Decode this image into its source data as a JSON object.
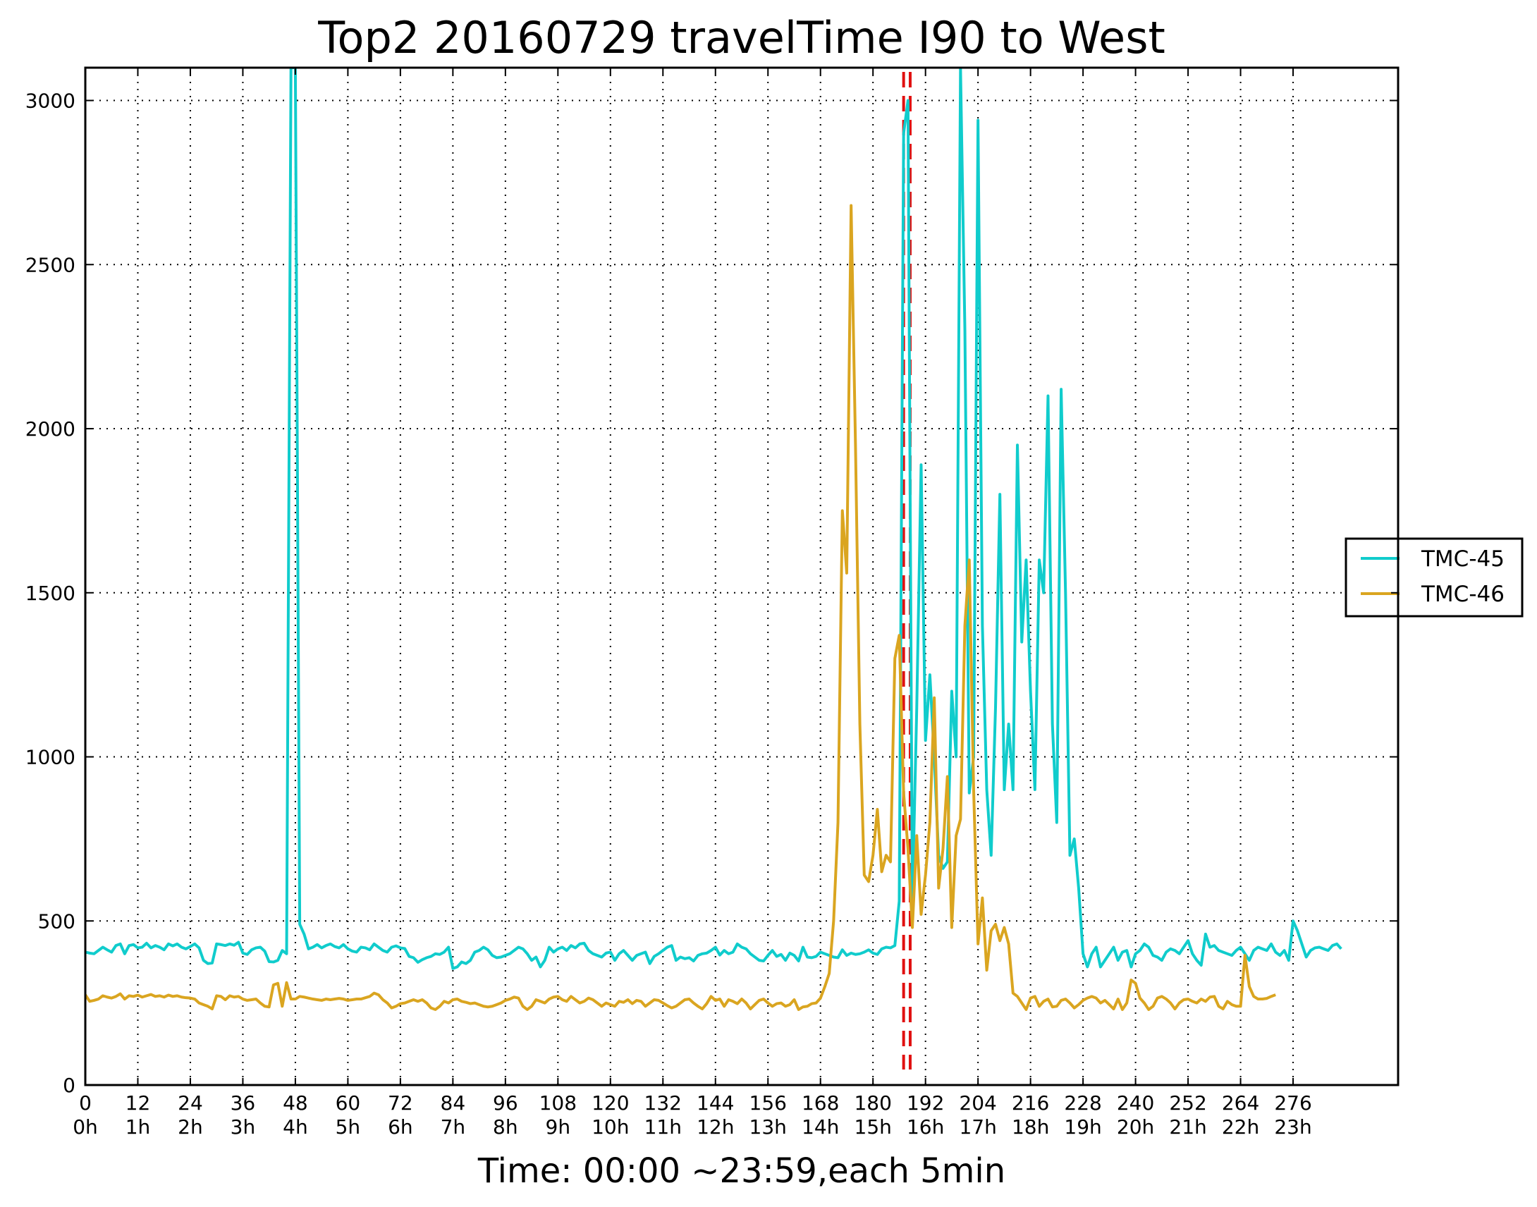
{
  "chart_data": {
    "type": "line",
    "title": "Top2 20160729 travelTime I90 to West",
    "xlabel": "Time: 00:00 ~23:59,each 5min",
    "ylabel": "",
    "xlim": [
      0,
      300
    ],
    "ylim": [
      0,
      3100
    ],
    "grid": true,
    "grid_style": "dotted",
    "legend_position": "right",
    "x_ticks": [
      {
        "value": 0,
        "label": "0",
        "hour_label": "0h"
      },
      {
        "value": 12,
        "label": "12",
        "hour_label": "1h"
      },
      {
        "value": 24,
        "label": "24",
        "hour_label": "2h"
      },
      {
        "value": 36,
        "label": "36",
        "hour_label": "3h"
      },
      {
        "value": 48,
        "label": "48",
        "hour_label": "4h"
      },
      {
        "value": 60,
        "label": "60",
        "hour_label": "5h"
      },
      {
        "value": 72,
        "label": "72",
        "hour_label": "6h"
      },
      {
        "value": 84,
        "label": "84",
        "hour_label": "7h"
      },
      {
        "value": 96,
        "label": "96",
        "hour_label": "8h"
      },
      {
        "value": 108,
        "label": "108",
        "hour_label": "9h"
      },
      {
        "value": 120,
        "label": "120",
        "hour_label": "10h"
      },
      {
        "value": 132,
        "label": "132",
        "hour_label": "11h"
      },
      {
        "value": 144,
        "label": "144",
        "hour_label": "12h"
      },
      {
        "value": 156,
        "label": "156",
        "hour_label": "13h"
      },
      {
        "value": 168,
        "label": "168",
        "hour_label": "14h"
      },
      {
        "value": 180,
        "label": "180",
        "hour_label": "15h"
      },
      {
        "value": 192,
        "label": "192",
        "hour_label": "16h"
      },
      {
        "value": 204,
        "label": "204",
        "hour_label": "17h"
      },
      {
        "value": 216,
        "label": "216",
        "hour_label": "18h"
      },
      {
        "value": 228,
        "label": "228",
        "hour_label": "19h"
      },
      {
        "value": 240,
        "label": "240",
        "hour_label": "20h"
      },
      {
        "value": 252,
        "label": "252",
        "hour_label": "21h"
      },
      {
        "value": 264,
        "label": "264",
        "hour_label": "22h"
      },
      {
        "value": 276,
        "label": "276",
        "hour_label": "23h"
      }
    ],
    "y_ticks": [
      {
        "value": 0,
        "label": "0"
      },
      {
        "value": 500,
        "label": "500"
      },
      {
        "value": 1000,
        "label": "1000"
      },
      {
        "value": 1500,
        "label": "1500"
      },
      {
        "value": 2000,
        "label": "2000"
      },
      {
        "value": 2500,
        "label": "2500"
      },
      {
        "value": 3000,
        "label": "3000"
      }
    ],
    "vlines": [
      {
        "x": 187.0,
        "color": "#e01010",
        "style": "dashed"
      },
      {
        "x": 188.5,
        "color": "#e01010",
        "style": "dashed"
      }
    ],
    "series": [
      {
        "name": "TMC-45",
        "color": "#10cccc",
        "values": [
          405,
          402,
          400,
          410,
          420,
          412,
          405,
          425,
          430,
          400,
          425,
          428,
          418,
          420,
          432,
          418,
          425,
          420,
          412,
          430,
          424,
          430,
          420,
          415,
          422,
          430,
          418,
          380,
          370,
          372,
          430,
          428,
          425,
          430,
          426,
          435,
          402,
          398,
          412,
          418,
          420,
          408,
          376,
          375,
          380,
          410,
          400,
          3100,
          3100,
          490,
          460,
          415,
          420,
          428,
          418,
          425,
          430,
          422,
          418,
          428,
          415,
          408,
          405,
          420,
          418,
          412,
          430,
          420,
          410,
          405,
          420,
          424,
          418,
          416,
          392,
          388,
          374,
          382,
          388,
          392,
          400,
          398,
          405,
          420,
          355,
          360,
          375,
          370,
          380,
          405,
          410,
          420,
          412,
          395,
          388,
          390,
          395,
          400,
          410,
          420,
          415,
          400,
          380,
          390,
          360,
          380,
          420,
          405,
          415,
          420,
          410,
          425,
          418,
          430,
          432,
          410,
          400,
          395,
          390,
          402,
          405,
          380,
          400,
          410,
          395,
          380,
          395,
          400,
          405,
          370,
          392,
          400,
          410,
          420,
          425,
          380,
          390,
          385,
          388,
          378,
          395,
          400,
          402,
          410,
          420,
          396,
          410,
          400,
          405,
          430,
          420,
          415,
          400,
          390,
          380,
          378,
          395,
          410,
          392,
          398,
          380,
          402,
          395,
          378,
          420,
          390,
          388,
          392,
          405,
          400,
          395,
          390,
          388,
          412,
          395,
          402,
          398,
          400,
          405,
          412,
          402,
          398,
          415,
          420,
          418,
          425,
          560,
          2900,
          3000,
          560,
          1150,
          1890,
          1050,
          1250,
          1000,
          700,
          660,
          680,
          1200,
          1000,
          3100,
          2300,
          890,
          1000,
          2940,
          1400,
          900,
          700,
          1150,
          1800,
          900,
          1100,
          900,
          1950,
          1350,
          1600,
          1200,
          900,
          1600,
          1500,
          2100,
          1100,
          800,
          2120,
          1500,
          700,
          750,
          600,
          400,
          360,
          400,
          420,
          360,
          380,
          400,
          420,
          380,
          405,
          410,
          360,
          400,
          410,
          430,
          420,
          395,
          390,
          380,
          405,
          415,
          410,
          400,
          420,
          440,
          400,
          380,
          365,
          460,
          420,
          425,
          410,
          405,
          400,
          395,
          410,
          420,
          400,
          380,
          410,
          420,
          415,
          410,
          430,
          405,
          395,
          410,
          380,
          500,
          470,
          430,
          390,
          410,
          418,
          420,
          415,
          410,
          425,
          430,
          415
        ]
      },
      {
        "name": "TMC-46",
        "color": "#daa520",
        "values": [
          275,
          255,
          258,
          262,
          272,
          268,
          265,
          270,
          278,
          262,
          272,
          270,
          274,
          268,
          272,
          276,
          270,
          272,
          268,
          274,
          270,
          272,
          268,
          266,
          265,
          262,
          250,
          245,
          240,
          232,
          272,
          270,
          260,
          272,
          268,
          270,
          262,
          258,
          260,
          262,
          250,
          240,
          238,
          305,
          310,
          240,
          312,
          262,
          262,
          270,
          268,
          265,
          262,
          260,
          258,
          262,
          260,
          262,
          264,
          262,
          258,
          260,
          262,
          262,
          266,
          270,
          280,
          275,
          260,
          250,
          235,
          240,
          248,
          250,
          255,
          260,
          255,
          260,
          250,
          235,
          230,
          240,
          255,
          250,
          260,
          262,
          255,
          252,
          248,
          250,
          245,
          240,
          238,
          240,
          245,
          250,
          258,
          262,
          268,
          265,
          240,
          230,
          240,
          260,
          255,
          250,
          262,
          268,
          270,
          260,
          255,
          270,
          260,
          250,
          255,
          265,
          260,
          250,
          240,
          250,
          245,
          240,
          255,
          252,
          260,
          248,
          258,
          255,
          240,
          250,
          260,
          258,
          250,
          242,
          235,
          240,
          250,
          260,
          262,
          250,
          240,
          232,
          248,
          270,
          258,
          262,
          240,
          260,
          255,
          248,
          262,
          250,
          232,
          245,
          258,
          262,
          250,
          240,
          248,
          250,
          240,
          245,
          260,
          230,
          238,
          240,
          248,
          250,
          265,
          300,
          340,
          500,
          800,
          1750,
          1560,
          2680,
          1950,
          1100,
          640,
          620,
          700,
          840,
          650,
          700,
          680,
          1300,
          1370,
          890,
          720,
          480,
          760,
          520,
          640,
          800,
          1180,
          600,
          720,
          940,
          480,
          760,
          810,
          1400,
          1600,
          900,
          430,
          570,
          350,
          470,
          490,
          440,
          480,
          430,
          280,
          270,
          250,
          230,
          265,
          270,
          240,
          255,
          262,
          238,
          240,
          258,
          262,
          250,
          235,
          245,
          258,
          265,
          270,
          265,
          250,
          258,
          245,
          232,
          262,
          230,
          250,
          320,
          310,
          265,
          250,
          230,
          240,
          265,
          270,
          262,
          250,
          232,
          250,
          260,
          262,
          255,
          250,
          262,
          255,
          268,
          270,
          240,
          232,
          255,
          245,
          240,
          240,
          395,
          300,
          270,
          262,
          262,
          264,
          270,
          275
        ]
      }
    ]
  }
}
